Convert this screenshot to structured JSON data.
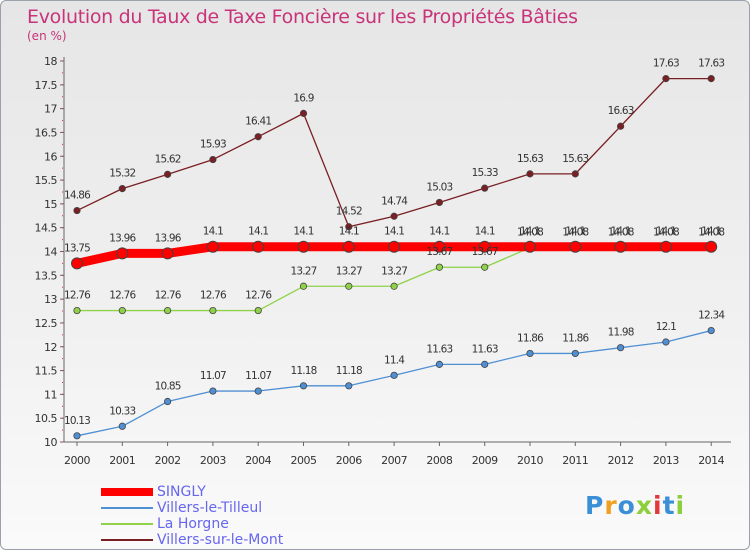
{
  "chart_data": {
    "type": "line",
    "title": "Evolution du Taux de Taxe Foncière sur les Propriétés Bâties",
    "unit_label": "(en %)",
    "xlabel": "",
    "ylabel": "",
    "x": [
      "2000",
      "2001",
      "2002",
      "2003",
      "2004",
      "2005",
      "2006",
      "2007",
      "2008",
      "2009",
      "2010",
      "2011",
      "2012",
      "2013",
      "2014"
    ],
    "ylim": [
      10,
      18
    ],
    "yticks": [
      10,
      10.5,
      11,
      11.5,
      12,
      12.5,
      13,
      13.5,
      14,
      14.5,
      15,
      15.5,
      16,
      16.5,
      17,
      17.5,
      18
    ],
    "ytick_labels": [
      "10",
      "10.5",
      "11",
      "11.5",
      "12",
      "12.5",
      "13",
      "13.5",
      "14",
      "14.5",
      "15",
      "15.5",
      "16",
      "16.5",
      "17",
      "17.5",
      "18"
    ],
    "grid": false,
    "legend_position": "bottom-left",
    "series": [
      {
        "name": "SINGLY",
        "color": "#ff0000",
        "marker_color": "#ff0000",
        "values": [
          13.75,
          13.96,
          13.96,
          14.1,
          14.1,
          14.1,
          14.1,
          14.1,
          14.1,
          14.1,
          14.1,
          14.1,
          14.1,
          14.1,
          14.1
        ],
        "labels": [
          "13.75",
          "13.96",
          "13.96",
          "14.1",
          "14.1",
          "14.1",
          "14.1",
          "14.1",
          "14.1",
          "14.1",
          "14.1",
          "14.1",
          "14.1",
          "14.1",
          "14.1"
        ]
      },
      {
        "name": "Villers-le-Tilleul",
        "color": "#4f8fd4",
        "marker_color": "#4f8fd4",
        "values": [
          10.13,
          10.33,
          10.85,
          11.07,
          11.07,
          11.18,
          11.18,
          11.4,
          11.63,
          11.63,
          11.86,
          11.86,
          11.98,
          12.1,
          12.34
        ],
        "labels": [
          "10.13",
          "10.33",
          "10.85",
          "11.07",
          "11.07",
          "11.18",
          "11.18",
          "11.4",
          "11.63",
          "11.63",
          "11.86",
          "11.86",
          "11.98",
          "12.1",
          "12.34"
        ]
      },
      {
        "name": "La Horgne",
        "color": "#8fd24a",
        "marker_color": "#8fd24a",
        "values": [
          12.76,
          12.76,
          12.76,
          12.76,
          12.76,
          13.27,
          13.27,
          13.27,
          13.67,
          13.67,
          14.08,
          14.08,
          14.08,
          14.08,
          14.08
        ],
        "labels": [
          "12.76",
          "12.76",
          "12.76",
          "12.76",
          "12.76",
          "13.27",
          "13.27",
          "13.27",
          "13.67",
          "13.67",
          "14.08",
          "14.08",
          "14.08",
          "14.08",
          "14.08"
        ]
      },
      {
        "name": "Villers-sur-le-Mont",
        "color": "#7a1f24",
        "marker_color": "#7a1f24",
        "values": [
          14.86,
          15.32,
          15.62,
          15.93,
          16.41,
          16.9,
          14.52,
          14.74,
          15.03,
          15.33,
          15.63,
          15.63,
          16.63,
          17.63,
          17.63
        ],
        "labels": [
          "14.86",
          "15.32",
          "15.62",
          "15.93",
          "16.41",
          "16.9",
          "14.52",
          "14.74",
          "15.03",
          "15.33",
          "15.63",
          "15.63",
          "16.63",
          "17.63",
          "17.63"
        ]
      }
    ]
  },
  "logo": {
    "letters": [
      "P",
      "r",
      "o",
      "x",
      "i",
      "t",
      "i"
    ],
    "colors": [
      "#3a8fd6",
      "#f0a020",
      "#3a8fd6",
      "#8ccf3a",
      "#e03a3a",
      "#3a8fd6",
      "#8ccf3a"
    ]
  }
}
